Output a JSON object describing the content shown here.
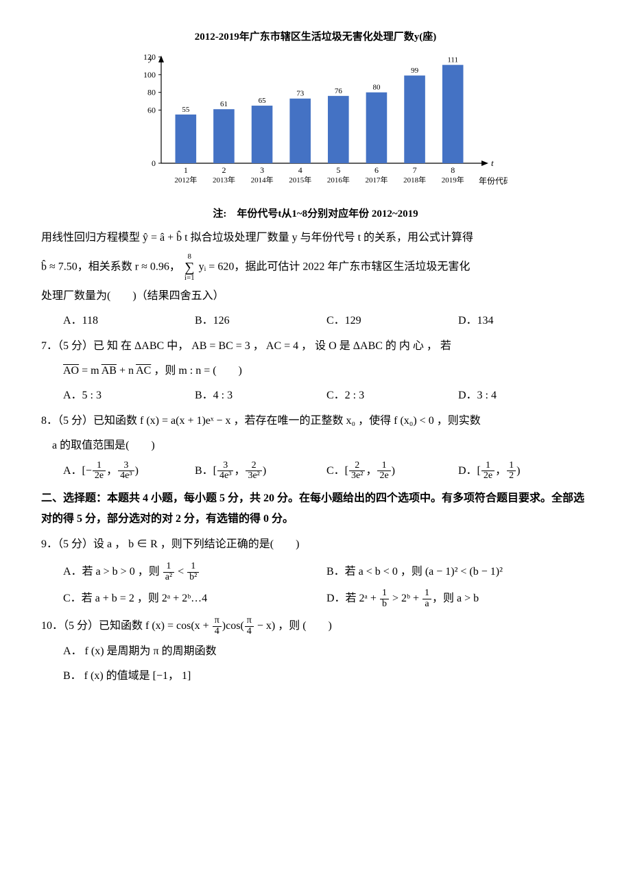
{
  "chart": {
    "type": "bar",
    "title": "2012-2019年广东市辖区生活垃圾无害化处理厂数y(座)",
    "x_label": "年份代码",
    "x_var": "t",
    "y_var": "y",
    "categories": [
      "1",
      "2",
      "3",
      "4",
      "5",
      "6",
      "7",
      "8"
    ],
    "year_labels": [
      "2012年",
      "2013年",
      "2014年",
      "2015年",
      "2016年",
      "2017年",
      "2018年",
      "2019年"
    ],
    "values": [
      55,
      61,
      65,
      73,
      76,
      80,
      99,
      111
    ],
    "ylim": [
      0,
      120
    ],
    "ytick_step": 20,
    "yticks": [
      0,
      60,
      80,
      100,
      120
    ],
    "bar_color": "#4472c4",
    "grid_color": "#d0d0d0",
    "axis_color": "#000000",
    "background_color": "#ffffff",
    "label_fontsize": 12,
    "title_fontsize": 15,
    "bar_width": 0.55,
    "note": "注:　年份代号t从1~8分别对应年份 2012~2019"
  },
  "q6_context1": "用线性回归方程模型 ŷ = â + b̂ t 拟合垃圾处理厂数量 y 与年份代号 t 的关系，用公式计算得",
  "q6_context2_a": "b̂ ≈ 7.50，相关系数 r ≈ 0.96，",
  "q6_context2_sumtop": "8",
  "q6_context2_sumbot": "i=1",
  "q6_context2_b": " yᵢ = 620，据此可估计 2022 年广东市辖区生活垃圾无害化",
  "q6_context3": "处理厂数量为(　　)（结果四舍五入）",
  "q6": {
    "A": "A．118",
    "B": "B．126",
    "C": "C．129",
    "D": "D．134"
  },
  "q7_stem_a": "7．（5 分）已 知 在 ΔABC 中， AB = BC = 3 ， AC = 4 ， 设 O 是 ΔABC 的 内 心 ， 若",
  "q7_stem_b": "AO = m AB + n AC ，则 m : n = (　　)",
  "q7_vec1": "AO",
  "q7_vec2": "AB",
  "q7_vec3": "AC",
  "q7": {
    "A": "A．5 : 3",
    "B": "B．4 : 3",
    "C": "C．2 : 3",
    "D": "D．3 : 4"
  },
  "q8_stem_a": "8．（5 分）已知函数 f (x) = a(x + 1)eˣ − x ，若存在唯一的正整数 x₀ ，使得 f (x₀) < 0 ，则实数",
  "q8_stem_b": "a 的取值范围是(　　)",
  "q8A": {
    "l": "A．[−",
    "n1": "1",
    "d1": "2e",
    "m": "，",
    "n2": "3",
    "d2": "4e³",
    "r": ")"
  },
  "q8B": {
    "l": "B．[",
    "n1": "3",
    "d1": "4e³",
    "m": "，",
    "n2": "2",
    "d2": "3e²",
    "r": ")"
  },
  "q8C": {
    "l": "C．[",
    "n1": "2",
    "d1": "3e²",
    "m": "，",
    "n2": "1",
    "d2": "2e",
    "r": ")"
  },
  "q8D": {
    "l": "D．[",
    "n1": "1",
    "d1": "2e",
    "m": "，",
    "n2": "1",
    "d2": "2",
    "r": ")"
  },
  "section2": "二、选择题：本题共 4 小题，每小题 5 分，共 20 分。在每小题给出的四个选项中。有多项符合题目要求。全部选对的得 5 分，部分选对的对 2 分，有选错的得 0 分。",
  "q9_stem": "9．（5 分）设 a ， b ∈ R ，则下列结论正确的是(　　)",
  "q9A": {
    "pre": "A．若 a > b > 0 ，则 ",
    "n1": "1",
    "d1": "a²",
    "mid": " < ",
    "n2": "1",
    "d2": "b²"
  },
  "q9B": "B．若 a < b < 0 ，则 (a − 1)² < (b − 1)²",
  "q9C": "C．若 a + b = 2 ，则 2ᵃ + 2ᵇ…4",
  "q9D": {
    "pre": "D．若 2ᵃ + ",
    "n1": "1",
    "d1": "b",
    "mid": " > 2ᵇ + ",
    "n2": "1",
    "d2": "a",
    "post": "，则 a > b"
  },
  "q10_stem_a": "10．（5 分）已知函数 f (x) = cos(x + ",
  "q10_stem_b": ")cos(",
  "q10_stem_c": " − x) ，则 (　　)",
  "q10_frac": {
    "n": "π",
    "d": "4"
  },
  "q10A": "A． f (x) 是周期为 π 的周期函数",
  "q10B": "B． f (x) 的值域是 [−1， 1]"
}
